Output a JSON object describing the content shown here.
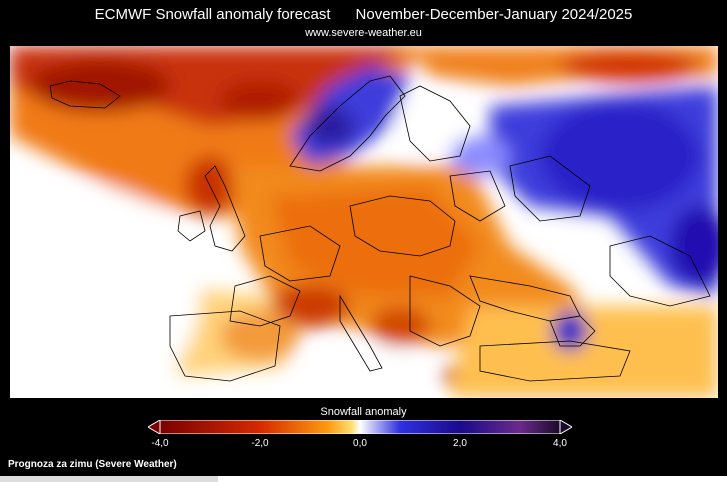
{
  "header": {
    "title": "ECMWF Snowfall anomaly forecast      November-December-January 2024/2025",
    "source_url": "www.severe-weather.eu"
  },
  "legend": {
    "title": "Snowfall anomaly",
    "ticks": [
      "-4,0",
      "-2,0",
      "0,0",
      "2,0",
      "4,0"
    ],
    "colors": [
      "#7a0000",
      "#d42a00",
      "#ff8a00",
      "#ffe070",
      "#ffffff",
      "#3030e0",
      "#2a0a8a",
      "#8a3a8a"
    ]
  },
  "map": {
    "region": "Europe",
    "variable": "Snowfall anomaly",
    "colors": {
      "deficit_strong": "#b41e00",
      "deficit": "#f07a14",
      "deficit_weak": "#ffd060",
      "neutral": "#ffffff",
      "surplus": "#3c3cdc",
      "surplus_strong": "#1e0a8c"
    }
  },
  "footer": {
    "caption": "Prognoza za zimu (Severe Weather)"
  }
}
